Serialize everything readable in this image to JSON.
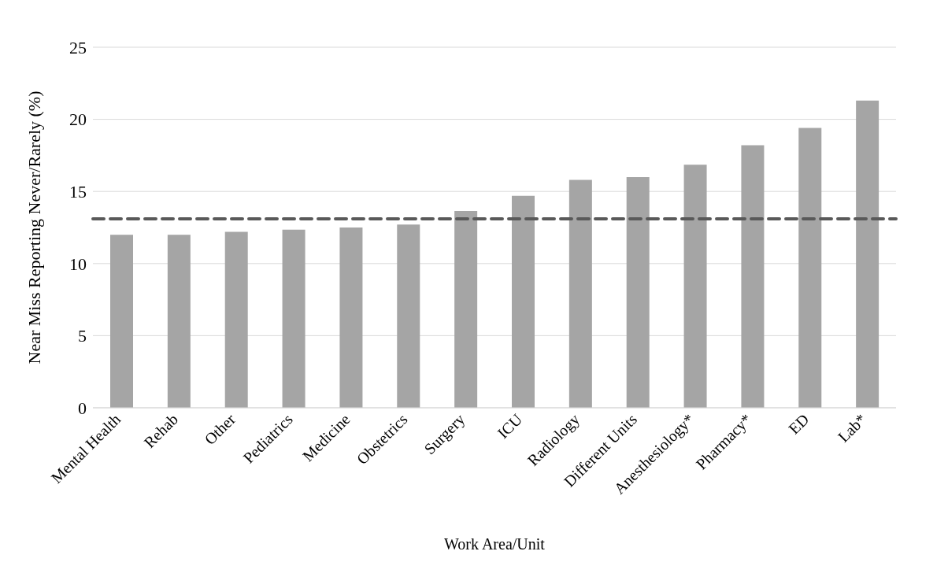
{
  "chart_data": {
    "type": "bar",
    "xlabel": "Work Area/Unit",
    "ylabel": "Near Miss Reporting Never/Rarely (%)",
    "categories": [
      "Mental Health",
      "Rehab",
      "Other",
      "Pediatrics",
      "Medicine",
      "Obstetrics",
      "Surgery",
      "ICU",
      "Radiology",
      "Different Units",
      "Anesthesiology*",
      "Pharmacy*",
      "ED",
      "Lab*"
    ],
    "values": [
      12.0,
      12.0,
      12.2,
      12.35,
      12.5,
      12.7,
      13.65,
      14.7,
      15.8,
      16.0,
      16.85,
      18.2,
      19.4,
      21.3
    ],
    "color": "#a5a5a5",
    "ylim": [
      0,
      25
    ],
    "yticks": [
      0,
      5,
      10,
      15,
      20,
      25
    ],
    "grid": "y",
    "ref_lines": [
      {
        "axis": "y",
        "value": 13.1,
        "color": "#595959",
        "line_style": "dashed"
      }
    ]
  }
}
